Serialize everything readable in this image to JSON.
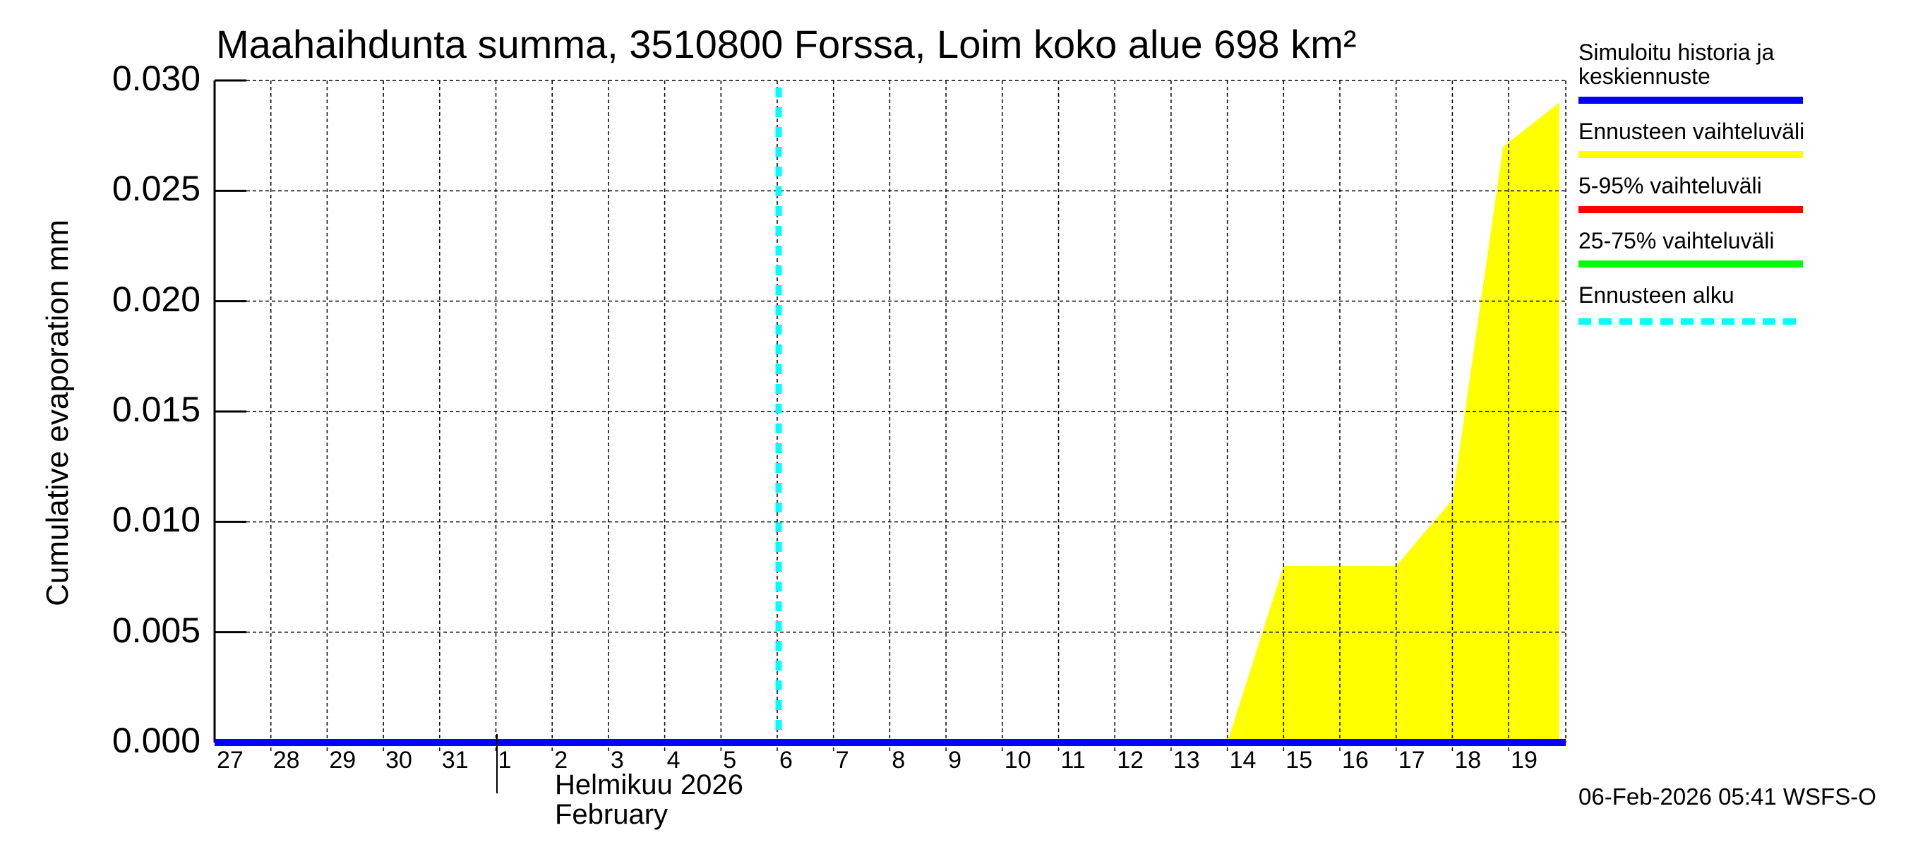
{
  "chart_data": {
    "type": "area",
    "title": "Maahaihdunta summa, 3510800 Forssa, Loim koko alue 698 km²",
    "xlabel": "Helmikuu 2026 / February",
    "ylabel": "Cumulative evaporation   mm",
    "ylim": [
      0.0,
      0.03
    ],
    "yticks": [
      "0.000",
      "0.005",
      "0.010",
      "0.015",
      "0.020",
      "0.025",
      "0.030"
    ],
    "xticks": [
      "27",
      "28",
      "29",
      "30",
      "31",
      "1",
      "2",
      "3",
      "4",
      "5",
      "6",
      "7",
      "8",
      "9",
      "10",
      "11",
      "12",
      "13",
      "14",
      "15",
      "16",
      "17",
      "18",
      "19"
    ],
    "grid": true,
    "legend_position": "right",
    "forecast_start": "6 (Feb 6, 2026)",
    "series": [
      {
        "name": "Simuloitu historia ja keskiennuste",
        "color": "#0000ff",
        "x": [
          "27",
          "19"
        ],
        "values": [
          0.0,
          0.0
        ]
      },
      {
        "name": "Ennusteen vaihteluväli",
        "color": "#ffff00",
        "type": "band",
        "x": [
          "14",
          "15",
          "16",
          "17",
          "18",
          "18.9",
          "19.9"
        ],
        "upper": [
          0.0,
          0.008,
          0.008,
          0.008,
          0.011,
          0.027,
          0.029
        ],
        "lower": [
          0.0,
          0.0,
          0.0,
          0.0,
          0.0,
          0.0,
          0.0
        ]
      },
      {
        "name": "5-95% vaihteluväli",
        "color": "#ff0000",
        "values": []
      },
      {
        "name": "25-75% vaihteluväli",
        "color": "#00ff00",
        "values": []
      },
      {
        "name": "Ennusteen alku",
        "color": "#00ffff",
        "style": "dashed",
        "x": [
          "6"
        ]
      }
    ]
  },
  "header": {
    "title": "Maahaihdunta summa, 3510800 Forssa, Loim koko alue 698 km²"
  },
  "axis": {
    "ylabel": "Cumulative evaporation   mm",
    "month_fi": "Helmikuu  2026",
    "month_en": "February"
  },
  "legend": {
    "items": [
      {
        "label": "Simuloitu historia ja",
        "label2": "keskiennuste",
        "color": "#0000ff"
      },
      {
        "label": "Ennusteen vaihteluväli",
        "color": "#ffff00"
      },
      {
        "label": "5-95% vaihteluväli",
        "color": "#ff0000"
      },
      {
        "label": "25-75% vaihteluväli",
        "color": "#00ff00"
      },
      {
        "label": "Ennusteen alku",
        "color": "#00ffff"
      }
    ]
  },
  "footer": {
    "timestamp": "06-Feb-2026 05:41 WSFS-O"
  }
}
